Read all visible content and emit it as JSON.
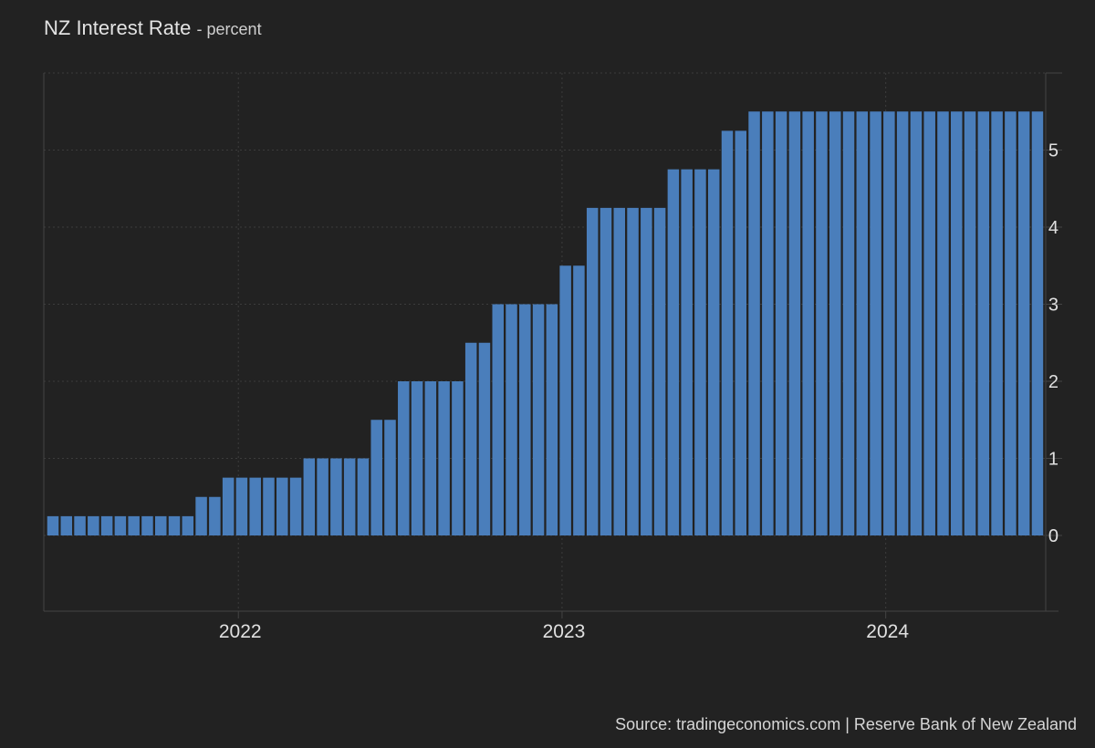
{
  "chart_data": {
    "type": "bar",
    "title": "NZ Interest Rate",
    "unit": "percent",
    "title_separator": "-",
    "frequency": "semi-monthly",
    "start": "2021-06",
    "values": [
      0.25,
      0.25,
      0.25,
      0.25,
      0.25,
      0.25,
      0.25,
      0.25,
      0.25,
      0.25,
      0.25,
      0.5,
      0.5,
      0.75,
      0.75,
      0.75,
      0.75,
      0.75,
      0.75,
      1,
      1,
      1,
      1,
      1,
      1.5,
      1.5,
      2,
      2,
      2,
      2,
      2,
      2.5,
      2.5,
      3,
      3,
      3,
      3,
      3,
      3.5,
      3.5,
      4.25,
      4.25,
      4.25,
      4.25,
      4.25,
      4.25,
      4.75,
      4.75,
      4.75,
      4.75,
      5.25,
      5.25,
      5.5,
      5.5,
      5.5,
      5.5,
      5.5,
      5.5,
      5.5,
      5.5,
      5.5,
      5.5,
      5.5,
      5.5,
      5.5,
      5.5,
      5.5,
      5.5,
      5.5,
      5.5,
      5.5,
      5.5,
      5.5,
      5.5
    ],
    "x_ticks": [
      "2022",
      "2023",
      "2024"
    ],
    "y_ticks": [
      0,
      1,
      2,
      3,
      4,
      5
    ],
    "ylim": [
      -1,
      6
    ],
    "grid": true,
    "y_axis_position": "right",
    "bar_color": "#4a7ebb",
    "source": "Source: tradingeconomics.com | Reserve Bank of New Zealand"
  }
}
